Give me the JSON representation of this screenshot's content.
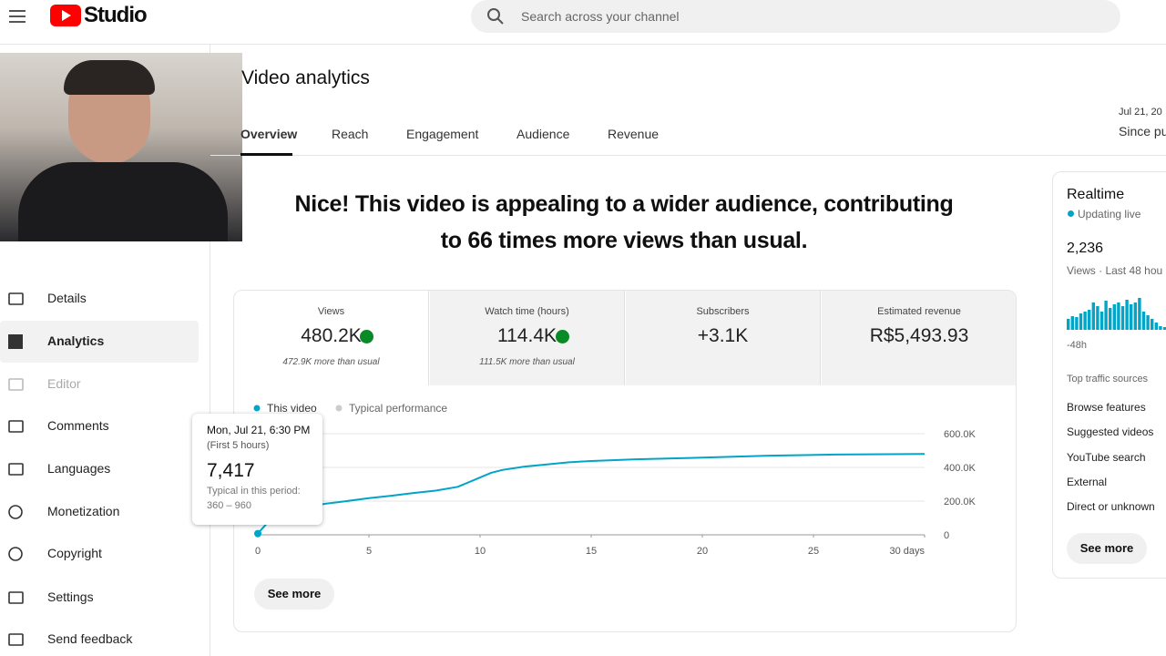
{
  "topbar": {
    "logo": "Studio",
    "search_placeholder": "Search across your channel"
  },
  "page": {
    "title": "Video analytics",
    "tabs": [
      "Overview",
      "Reach",
      "Engagement",
      "Audience",
      "Revenue"
    ],
    "date": "Jul 21, 20",
    "date_range": "Since pu"
  },
  "headline": [
    "Nice! This video is appealing to a wider audience, contributing",
    "to 66 times more views than usual."
  ],
  "sidebar": [
    "Details",
    "Analytics",
    "Editor",
    "Comments",
    "Languages",
    "Monetization",
    "Copyright",
    "Settings",
    "Send feedback"
  ],
  "metrics": [
    {
      "label": "Views",
      "value": "480.2K",
      "note": "472.9K more than usual"
    },
    {
      "label": "Watch time (hours)",
      "value": "114.4K",
      "note": "111.5K more than usual"
    },
    {
      "label": "Subscribers",
      "value": "+3.1K"
    },
    {
      "label": "Estimated revenue",
      "value": "R$5,493.93"
    }
  ],
  "chart": {
    "type": "line",
    "legend": [
      {
        "name": "This video",
        "color": "#00a5c8"
      },
      {
        "name": "Typical performance",
        "color": "#cccccc"
      }
    ],
    "x": [
      0,
      0.5,
      1,
      2,
      3,
      4,
      5,
      6,
      7,
      8,
      9,
      10,
      10.5,
      11,
      12,
      13,
      14,
      15,
      17,
      20,
      23,
      26,
      30
    ],
    "values": [
      7417,
      81000,
      119000,
      157000,
      184000,
      200000,
      218000,
      232000,
      248000,
      262000,
      285000,
      340000,
      368000,
      385000,
      405000,
      418000,
      430000,
      438000,
      448000,
      458000,
      470000,
      476000,
      480000
    ],
    "color": "#00a5c8",
    "xlim": [
      0,
      30
    ],
    "xticks": [
      0,
      5,
      10,
      15,
      20,
      25,
      {
        "value": 30,
        "label": "30 days"
      }
    ],
    "ylim": [
      0,
      600000
    ],
    "yticks": [
      0,
      {
        "value": 200000,
        "label": "200.0K"
      },
      {
        "value": 400000,
        "label": "400.0K"
      },
      {
        "value": 600000,
        "label": "600.0K"
      }
    ],
    "grid": true,
    "button": "See more"
  },
  "tooltip": {
    "date": "Mon, Jul 21, 6:30 PM",
    "period": "(First 5 hours)",
    "value": "7,417",
    "typical_label": "Typical in this period:",
    "typical_range": "360 – 960"
  },
  "realtime": {
    "title": "Realtime",
    "status": "Updating live",
    "count": "2,236",
    "count_label": "Views · Last 48 hou",
    "bars": [
      12,
      15,
      14,
      18,
      20,
      22,
      30,
      26,
      20,
      32,
      24,
      28,
      30,
      26,
      33,
      28,
      30,
      35,
      20,
      16,
      12,
      8,
      4,
      3
    ],
    "bars_start_label": "-48h",
    "sources_title": "Top traffic sources",
    "sources": [
      "Browse features",
      "Suggested videos",
      "YouTube search",
      "External",
      "Direct or unknown"
    ],
    "button": "See more"
  }
}
